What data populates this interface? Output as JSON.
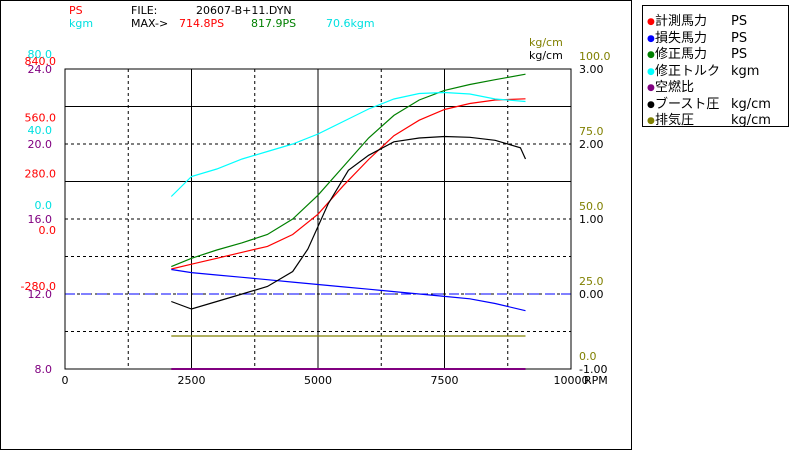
{
  "header": {
    "ps_label": "PS",
    "kgm_label": "kgm",
    "file_label": "FILE:",
    "file_name": "20607-B+11.DYN",
    "max_label": "MAX->",
    "max_values": [
      "714.8PS",
      "817.9PS",
      "70.6kgm"
    ]
  },
  "colors": {
    "measured_power": "#ff0000",
    "loss_power": "#0000ff",
    "corrected_power": "#008000",
    "corrected_torque": "#00ffff",
    "air_fuel": "#800080",
    "boost": "#000000",
    "exhaust": "#808000"
  },
  "legend": [
    {
      "name": "計測馬力",
      "unit": "PS",
      "color": "#ff0000"
    },
    {
      "name": "損失馬力",
      "unit": "PS",
      "color": "#0000ff"
    },
    {
      "name": "修正馬力",
      "unit": "PS",
      "color": "#008000"
    },
    {
      "name": "修正トルク",
      "unit": "kgm",
      "color": "#00ffff"
    },
    {
      "name": "空燃比",
      "unit": "",
      "color": "#800080"
    },
    {
      "name": "ブースト圧",
      "unit": "kg/cm",
      "color": "#000000"
    },
    {
      "name": "排気圧",
      "unit": "kg/cm",
      "color": "#808000"
    }
  ],
  "chart_data": {
    "type": "line",
    "xlabel": "RPM",
    "xlim": [
      0,
      10000
    ],
    "x_ticks": [
      "0",
      "2500",
      "5000",
      "7500",
      "10000"
    ],
    "grid": true,
    "legend_position": "right",
    "left_axes": [
      {
        "name": "power",
        "color": "#ff0000",
        "ticks": [
          "840.0",
          "560.0",
          "280.0",
          "0.0",
          "-280.0"
        ],
        "ylim": [
          -420,
          840
        ]
      },
      {
        "name": "torque",
        "color": "#00ffff",
        "ticks": [
          "80.0",
          "40.0",
          "0.0"
        ],
        "ylim": [
          -40,
          80
        ]
      },
      {
        "name": "air-fuel",
        "color": "#800080",
        "ticks": [
          "24.0",
          "20.0",
          "16.0",
          "12.0",
          "8.0"
        ],
        "ylim": [
          8,
          24
        ]
      }
    ],
    "right_axes": [
      {
        "name": "exhaust",
        "color": "#808000",
        "unit": "kg/cm",
        "ticks": [
          "100.0",
          "75.0",
          "50.0",
          "25.0",
          "0.0"
        ],
        "ylim": [
          0,
          100
        ]
      },
      {
        "name": "boost",
        "color": "#000000",
        "unit": "kg/cm",
        "ticks": [
          "3.00",
          "2.00",
          "1.00",
          "0.00",
          "-1.00"
        ],
        "ylim": [
          -1,
          3
        ]
      }
    ],
    "series": [
      {
        "name": "計測馬力",
        "axis": "power",
        "color": "#ff0000",
        "x": [
          2100,
          2500,
          3000,
          3500,
          4000,
          4500,
          5000,
          5500,
          6000,
          6500,
          7000,
          7500,
          8000,
          8500,
          9100
        ],
        "y": [
          0,
          20,
          45,
          70,
          95,
          145,
          230,
          350,
          460,
          560,
          625,
          670,
          695,
          710,
          715
        ]
      },
      {
        "name": "損失馬力",
        "axis": "power",
        "color": "#0000ff",
        "x": [
          2100,
          2500,
          3000,
          3500,
          4000,
          4500,
          5000,
          5500,
          6000,
          6500,
          7000,
          7500,
          8000,
          8500,
          9100
        ],
        "y": [
          -2,
          -15,
          -25,
          -35,
          -45,
          -55,
          -65,
          -75,
          -85,
          -95,
          -105,
          -115,
          -125,
          -145,
          -175
        ]
      },
      {
        "name": "修正馬力",
        "axis": "power",
        "color": "#008000",
        "x": [
          2100,
          2500,
          3000,
          3500,
          4000,
          4500,
          5000,
          5500,
          6000,
          6500,
          7000,
          7500,
          8000,
          8500,
          9100
        ],
        "y": [
          10,
          45,
          80,
          110,
          145,
          210,
          310,
          430,
          550,
          645,
          710,
          750,
          775,
          795,
          818
        ]
      },
      {
        "name": "修正トルク",
        "axis": "torque",
        "color": "#00ffff",
        "x": [
          2100,
          2500,
          3000,
          3500,
          4000,
          4500,
          5000,
          5500,
          6000,
          6500,
          7000,
          7500,
          8000,
          8500,
          9100
        ],
        "y": [
          29,
          37,
          40,
          44,
          47,
          50,
          54,
          59,
          64,
          68,
          70.2,
          70.6,
          70,
          68,
          67
        ]
      },
      {
        "name": "空燃比",
        "axis": "air-fuel",
        "color": "#800080",
        "x": [
          2100,
          9100
        ],
        "y": [
          8,
          8
        ]
      },
      {
        "name": "ブースト圧",
        "axis": "boost",
        "color": "#000000",
        "x": [
          2100,
          2500,
          3000,
          3500,
          4000,
          4500,
          4800,
          5200,
          5600,
          6000,
          6500,
          7000,
          7500,
          8000,
          8500,
          9000,
          9100
        ],
        "y": [
          -0.1,
          -0.2,
          -0.1,
          0.0,
          0.1,
          0.3,
          0.6,
          1.2,
          1.65,
          1.85,
          2.03,
          2.08,
          2.1,
          2.09,
          2.05,
          1.95,
          1.8
        ]
      },
      {
        "name": "排気圧",
        "axis": "exhaust",
        "color": "#808000",
        "x": [
          2100,
          5000,
          9100
        ],
        "y": [
          11,
          11,
          11
        ]
      }
    ]
  }
}
